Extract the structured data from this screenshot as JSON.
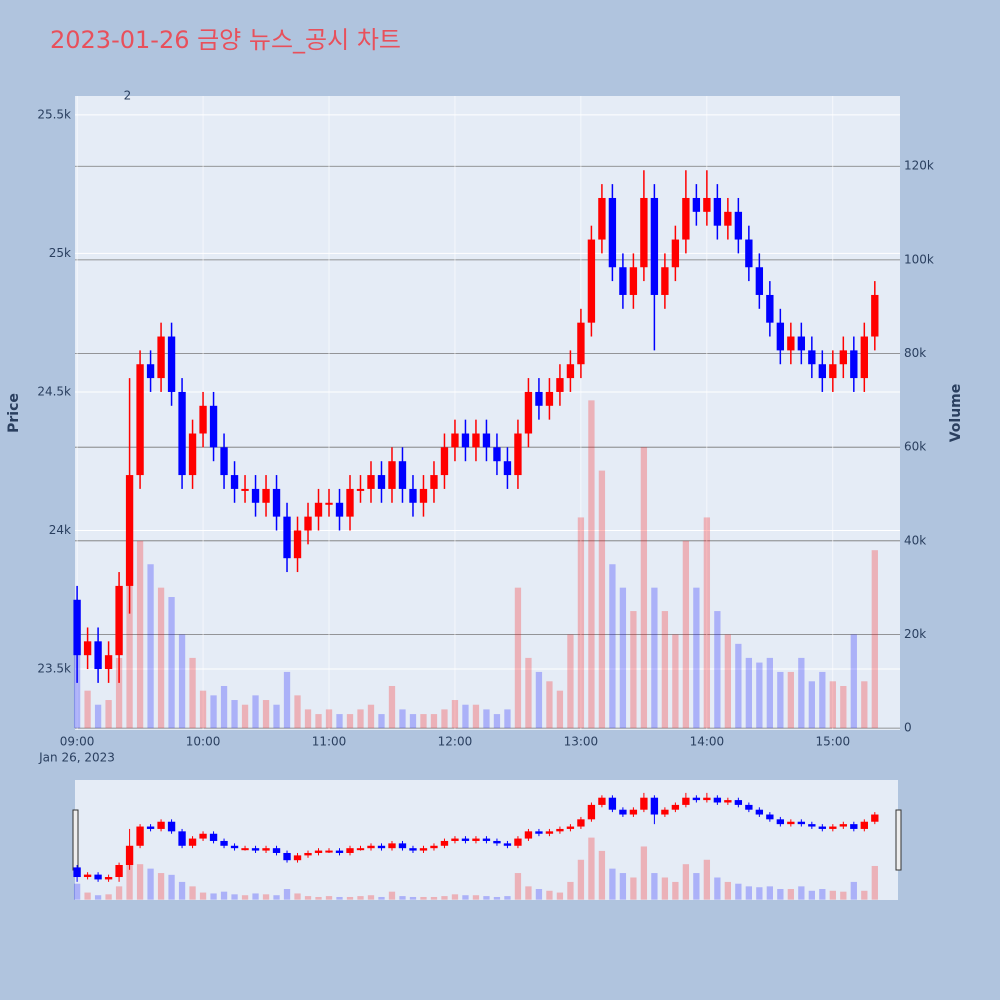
{
  "chart_data": {
    "type": "candlestick",
    "title": "2023-01-26 금양 뉴스_공시 차트",
    "ylabel": "Price",
    "y2label": "Volume",
    "x": [
      "09:00",
      "09:05",
      "09:10",
      "09:15",
      "09:20",
      "09:25",
      "09:30",
      "09:35",
      "09:40",
      "09:45",
      "09:50",
      "09:55",
      "10:00",
      "10:05",
      "10:10",
      "10:15",
      "10:20",
      "10:25",
      "10:30",
      "10:35",
      "10:40",
      "10:45",
      "10:50",
      "10:55",
      "11:00",
      "11:05",
      "11:10",
      "11:15",
      "11:20",
      "11:25",
      "11:30",
      "11:35",
      "11:40",
      "11:45",
      "11:50",
      "11:55",
      "12:00",
      "12:05",
      "12:10",
      "12:15",
      "12:20",
      "12:25",
      "12:30",
      "12:35",
      "12:40",
      "12:45",
      "12:50",
      "12:55",
      "13:00",
      "13:05",
      "13:10",
      "13:15",
      "13:20",
      "13:25",
      "13:30",
      "13:35",
      "13:40",
      "13:45",
      "13:50",
      "13:55",
      "14:00",
      "14:05",
      "14:10",
      "14:15",
      "14:20",
      "14:25",
      "14:30",
      "14:35",
      "14:40",
      "14:45",
      "14:50",
      "14:55",
      "15:00",
      "15:05",
      "15:10",
      "15:15",
      "15:20"
    ],
    "open": [
      23750,
      23550,
      23600,
      23500,
      23550,
      23800,
      24200,
      24600,
      24550,
      24700,
      24500,
      24200,
      24350,
      24450,
      24300,
      24200,
      24150,
      24150,
      24100,
      24150,
      24050,
      23900,
      24000,
      24050,
      24100,
      24100,
      24050,
      24150,
      24150,
      24200,
      24150,
      24250,
      24150,
      24100,
      24150,
      24200,
      24300,
      24350,
      24300,
      24350,
      24300,
      24250,
      24200,
      24350,
      24500,
      24450,
      24500,
      24550,
      24600,
      24750,
      25050,
      25200,
      24950,
      24850,
      24950,
      25200,
      24850,
      24950,
      25050,
      25200,
      25150,
      25200,
      25100,
      25150,
      25050,
      24950,
      24850,
      24750,
      24650,
      24700,
      24650,
      24600,
      24550,
      24600,
      24650,
      24550,
      24700
    ],
    "high": [
      23800,
      23650,
      23650,
      23600,
      23850,
      24550,
      24650,
      24650,
      24750,
      24750,
      24550,
      24400,
      24500,
      24500,
      24350,
      24250,
      24200,
      24200,
      24200,
      24200,
      24100,
      24050,
      24100,
      24150,
      24150,
      24150,
      24200,
      24200,
      24250,
      24250,
      24300,
      24300,
      24200,
      24200,
      24250,
      24350,
      24400,
      24400,
      24400,
      24400,
      24350,
      24300,
      24400,
      24550,
      24550,
      24550,
      24600,
      24650,
      24800,
      25100,
      25250,
      25250,
      25000,
      25000,
      25300,
      25250,
      25000,
      25100,
      25300,
      25250,
      25300,
      25250,
      25200,
      25200,
      25100,
      25000,
      24900,
      24800,
      24750,
      24750,
      24700,
      24650,
      24650,
      24700,
      24700,
      24750,
      24900
    ],
    "low": [
      23450,
      23500,
      23450,
      23450,
      23450,
      23700,
      24150,
      24500,
      24500,
      24450,
      24150,
      24150,
      24300,
      24250,
      24150,
      24100,
      24100,
      24050,
      24050,
      24000,
      23850,
      23850,
      23950,
      24000,
      24050,
      24000,
      24000,
      24100,
      24100,
      24100,
      24100,
      24100,
      24050,
      24050,
      24100,
      24150,
      24250,
      24250,
      24250,
      24250,
      24200,
      24150,
      24150,
      24300,
      24400,
      24400,
      24450,
      24500,
      24550,
      24700,
      25000,
      24900,
      24800,
      24800,
      24900,
      24650,
      24800,
      24900,
      25000,
      25100,
      25100,
      25050,
      25050,
      25000,
      24900,
      24800,
      24700,
      24600,
      24600,
      24600,
      24550,
      24500,
      24500,
      24550,
      24500,
      24500,
      24650
    ],
    "close": [
      23550,
      23600,
      23500,
      23550,
      23800,
      24200,
      24600,
      24550,
      24700,
      24500,
      24200,
      24350,
      24450,
      24300,
      24200,
      24150,
      24150,
      24100,
      24150,
      24050,
      23900,
      24000,
      24050,
      24100,
      24100,
      24050,
      24150,
      24150,
      24200,
      24150,
      24250,
      24150,
      24100,
      24150,
      24200,
      24300,
      24350,
      24300,
      24350,
      24300,
      24250,
      24200,
      24350,
      24500,
      24450,
      24500,
      24550,
      24600,
      24750,
      25050,
      25200,
      24950,
      24850,
      24950,
      25200,
      24850,
      24950,
      25050,
      25200,
      25150,
      25200,
      25100,
      25150,
      25050,
      24950,
      24850,
      24750,
      24650,
      24700,
      24650,
      24600,
      24550,
      24600,
      24650,
      24550,
      24700,
      24850
    ],
    "volume": [
      18000,
      8000,
      5000,
      6000,
      15000,
      50000,
      40000,
      35000,
      30000,
      28000,
      20000,
      15000,
      8000,
      7000,
      9000,
      6000,
      5000,
      7000,
      6000,
      5000,
      12000,
      7000,
      4000,
      3000,
      4000,
      3000,
      3000,
      4000,
      5000,
      3000,
      9000,
      4000,
      3000,
      3000,
      3000,
      4000,
      6000,
      5000,
      5000,
      4000,
      3000,
      4000,
      30000,
      15000,
      12000,
      10000,
      8000,
      20000,
      45000,
      70000,
      55000,
      35000,
      30000,
      25000,
      60000,
      30000,
      25000,
      20000,
      40000,
      30000,
      45000,
      25000,
      20000,
      18000,
      15000,
      14000,
      15000,
      12000,
      12000,
      15000,
      10000,
      12000,
      10000,
      9000,
      20000,
      10000,
      38000
    ],
    "increasing_color": "#ff0000",
    "decreasing_color": "#0000ff",
    "xlim": [
      "08:59",
      "15:32"
    ],
    "ylim": [
      23280,
      25568
    ],
    "y2lim": [
      -400,
      135000
    ],
    "xticks": [
      "09:00",
      "10:00",
      "11:00",
      "12:00",
      "13:00",
      "14:00",
      "15:00"
    ],
    "xtick_date": "Jan 26, 2023",
    "yticks": [
      {
        "value": 23500,
        "label": "23.5k"
      },
      {
        "value": 24000,
        "label": "24k"
      },
      {
        "value": 24500,
        "label": "24.5k"
      },
      {
        "value": 25000,
        "label": "25k"
      },
      {
        "value": 25500,
        "label": "25.5k"
      }
    ],
    "y2ticks": [
      0,
      {
        "value": 20000,
        "label": "20k"
      },
      {
        "value": 40000,
        "label": "40k"
      },
      {
        "value": 60000,
        "label": "60k"
      },
      {
        "value": 80000,
        "label": "80k"
      },
      {
        "value": 100000,
        "label": "100k"
      },
      {
        "value": 120000,
        "label": "120k"
      }
    ],
    "annotations": [
      {
        "x": "09:24",
        "text": "2"
      }
    ],
    "grid": true,
    "rangeslider": true
  }
}
